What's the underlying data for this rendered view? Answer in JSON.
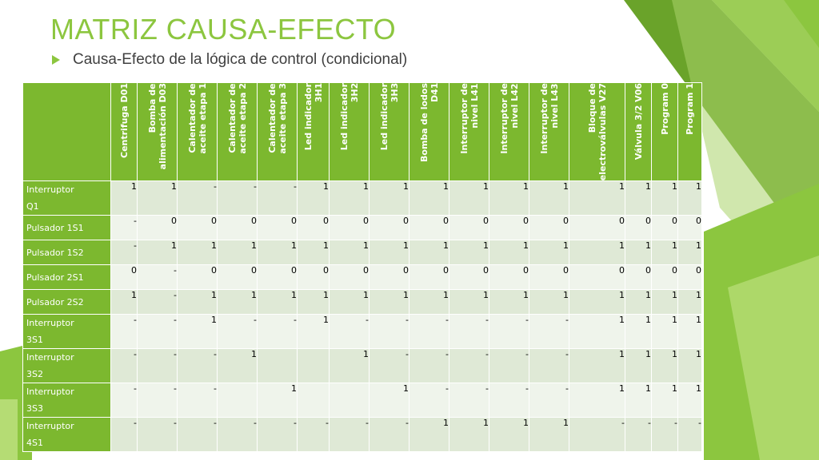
{
  "slide": {
    "title": "MATRIZ CAUSA-EFECTO",
    "subtitle": "Causa-Efecto de la lógica de control (condicional)"
  },
  "colors": {
    "accent": "#8cc63f",
    "header_fill": "#7cb82f",
    "row_odd": "#dfe9d6",
    "row_even": "#eff4eb"
  },
  "matrix": {
    "columns": [
      "Centrifuga D01",
      "Bomba de\nalimentación D03",
      "Calentador de\naceite etapa 1",
      "Calentador de\naceite etapa 2",
      "Calentador de\naceite etapa 3",
      "Led indicador\n3H1",
      "Led indicador\n3H2",
      "Led indicador\n3H3",
      "Bomba de lodos\nD41",
      "Interruptor de\nnivel L41",
      "Interruptor de\nnivel L42",
      "Interruptor de\nnivel L43",
      "Bloque de\nelectroválvulas V27",
      "Válvula 3/2 V06",
      "Program 0",
      "Program 1"
    ],
    "rows": [
      {
        "label": "Interruptor\nQ1",
        "cells": [
          "1",
          "1",
          "-",
          "-",
          "-",
          "1",
          "1",
          "1",
          "1",
          "1",
          "1",
          "1",
          "1",
          "1",
          "1",
          "1"
        ]
      },
      {
        "label": "Pulsador 1S1",
        "cells": [
          "-",
          "0",
          "0",
          "0",
          "0",
          "0",
          "0",
          "0",
          "0",
          "0",
          "0",
          "0",
          "0",
          "0",
          "0",
          "0"
        ]
      },
      {
        "label": "Pulsador 1S2",
        "cells": [
          "-",
          "1",
          "1",
          "1",
          "1",
          "1",
          "1",
          "1",
          "1",
          "1",
          "1",
          "1",
          "1",
          "1",
          "1",
          "1"
        ]
      },
      {
        "label": "Pulsador 2S1",
        "cells": [
          "0",
          "-",
          "0",
          "0",
          "0",
          "0",
          "0",
          "0",
          "0",
          "0",
          "0",
          "0",
          "0",
          "0",
          "0",
          "0"
        ]
      },
      {
        "label": "Pulsador 2S2",
        "cells": [
          "1",
          "-",
          "1",
          "1",
          "1",
          "1",
          "1",
          "1",
          "1",
          "1",
          "1",
          "1",
          "1",
          "1",
          "1",
          "1"
        ]
      },
      {
        "label": "Interruptor\n3S1",
        "cells": [
          "-",
          "-",
          "1",
          "-",
          "-",
          "1",
          "-",
          "-",
          "-",
          "-",
          "-",
          "-",
          "1",
          "1",
          "1",
          "1"
        ]
      },
      {
        "label": "Interruptor\n3S2",
        "cells": [
          "-",
          "-",
          "-",
          "1",
          "",
          "",
          "1",
          "-",
          "-",
          "-",
          "-",
          "-",
          "1",
          "1",
          "1",
          "1"
        ]
      },
      {
        "label": "Interruptor\n3S3",
        "cells": [
          "-",
          "-",
          "-",
          "",
          "1",
          "",
          "",
          "1",
          "-",
          "-",
          "-",
          "-",
          "1",
          "1",
          "1",
          "1"
        ]
      },
      {
        "label": "Interruptor\n4S1",
        "cells": [
          "-",
          "-",
          "-",
          "-",
          "-",
          "-",
          "-",
          "-",
          "1",
          "1",
          "1",
          "1",
          "-",
          "-",
          "-",
          "-"
        ]
      }
    ]
  }
}
